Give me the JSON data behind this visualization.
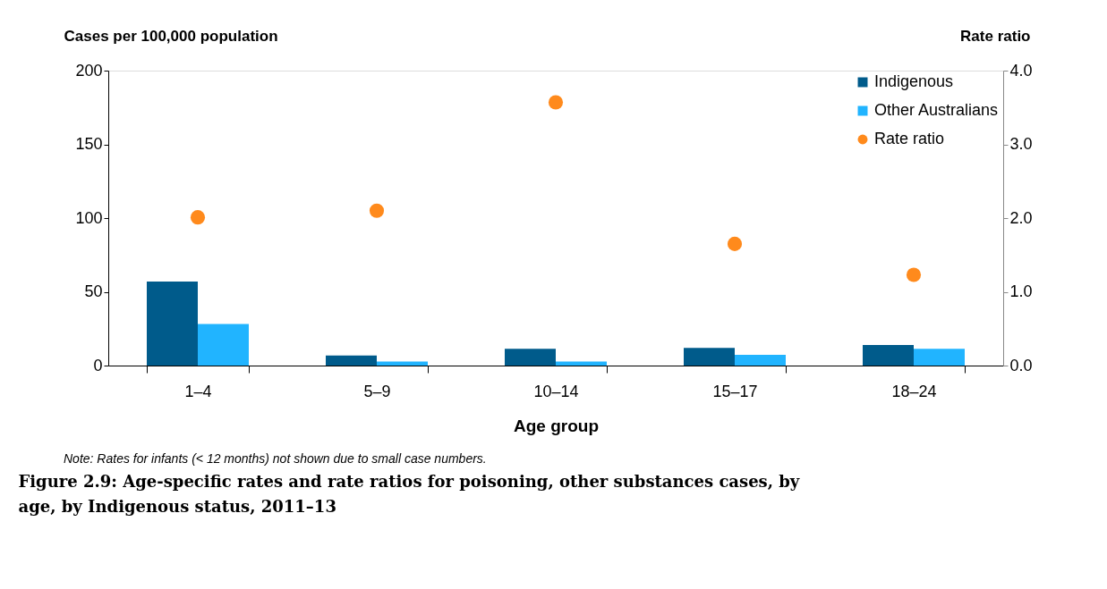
{
  "chart_data": {
    "type": "bar",
    "title": "Figure 2.9: Age-specific rates and rate ratios for poisoning, other substances cases, by age, by Indigenous status, 2011–13",
    "xlabel": "Age group",
    "ylabel": "Cases per 100,000 population",
    "y2label": "Rate ratio",
    "categories": [
      "1–4",
      "5–9",
      "10–14",
      "15–17",
      "18–24"
    ],
    "series": [
      {
        "name": "Indigenous",
        "color": "#005b8b",
        "values": [
          57,
          6.8,
          11.3,
          11.9,
          14
        ]
      },
      {
        "name": "Other Australians",
        "color": "#21b4ff",
        "values": [
          28.2,
          2.8,
          2.8,
          7.3,
          11.3
        ]
      },
      {
        "name": "Rate ratio",
        "type": "scatter",
        "axis": "y2",
        "color": "#ff8a1c",
        "values": [
          2.01,
          2.1,
          3.57,
          1.65,
          1.23
        ]
      }
    ],
    "ylim": [
      0,
      200
    ],
    "yticks": [
      0,
      50,
      100,
      150,
      200
    ],
    "y2lim": [
      0,
      4
    ],
    "y2ticks": [
      {
        "value": 0,
        "label": "0.0"
      },
      {
        "value": 1,
        "label": "1.0"
      },
      {
        "value": 2,
        "label": "2.0"
      },
      {
        "value": 3,
        "label": "3.0"
      },
      {
        "value": 4,
        "label": "4.0"
      }
    ],
    "legend": "top right",
    "grid": false,
    "marker": "circle",
    "annotations": [
      "Note: Rates for infants (< 12 months) not shown due to small case numbers."
    ]
  }
}
